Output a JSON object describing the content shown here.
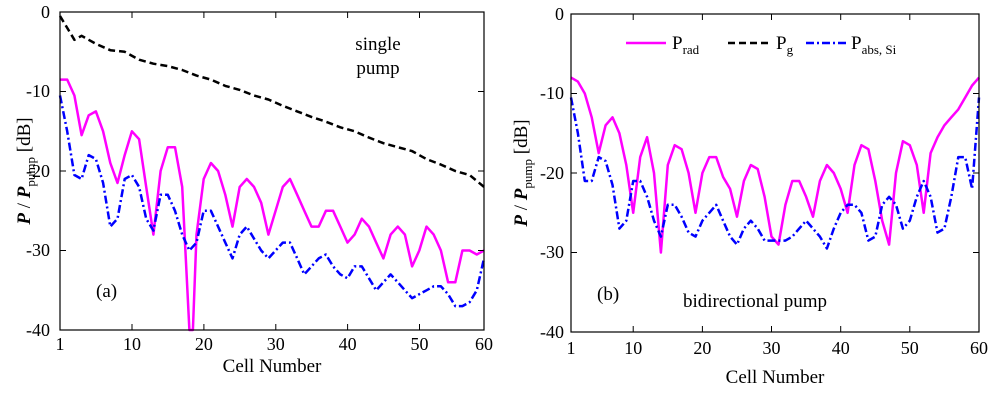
{
  "chart_data": [
    {
      "type": "line",
      "panel_label": "(a)",
      "annotation_lines": [
        "single",
        "pump"
      ],
      "xlabel": "Cell Number",
      "ylabel_parts": [
        "P",
        " / ",
        "P",
        "pump",
        " [dB]"
      ],
      "xlim": [
        1,
        60
      ],
      "ylim": [
        -40,
        0
      ],
      "xticks": [
        "1",
        "10",
        "20",
        "30",
        "40",
        "50",
        "60"
      ],
      "yticks": [
        "0",
        "-10",
        "-20",
        "-30",
        "-40"
      ],
      "grid": false,
      "series": [
        {
          "key": "rad",
          "color": "#ff00ff",
          "style": "solid",
          "x": [
            1,
            2,
            3,
            4,
            5,
            6,
            7,
            8,
            9,
            10,
            11,
            12,
            13,
            14,
            15,
            16,
            17,
            18,
            19,
            19.5,
            20,
            21,
            22,
            23,
            24,
            25,
            26,
            27,
            28,
            29,
            30,
            31,
            32,
            33,
            34,
            35,
            36,
            37,
            38,
            39,
            40,
            41,
            42,
            43,
            44,
            45,
            46,
            47,
            48,
            49,
            50,
            51,
            52,
            53,
            54,
            55,
            56,
            57,
            58,
            59,
            60
          ],
          "y": [
            -8.5,
            -8.5,
            -10.5,
            -15.5,
            -13,
            -12.5,
            -15,
            -19,
            -21.5,
            -18,
            -15,
            -16,
            -22,
            -28,
            -20,
            -17,
            -17,
            -22,
            -40,
            -40,
            -28,
            -21,
            -19,
            -20,
            -23,
            -27,
            -22,
            -21,
            -22,
            -24,
            -28,
            -25,
            -22,
            -21,
            -23,
            -25,
            -27,
            -27,
            -25,
            -25,
            -27,
            -29,
            -28,
            -26,
            -27,
            -29,
            -31,
            -28,
            -27,
            -28,
            -32,
            -30,
            -27,
            -28,
            -30,
            -34,
            -34,
            -30,
            -30,
            -30.5,
            -30
          ]
        },
        {
          "key": "g",
          "color": "#000000",
          "style": "dashed",
          "x": [
            1,
            2,
            3,
            4,
            5,
            6,
            8,
            10,
            12,
            14,
            16,
            18,
            20,
            22,
            24,
            26,
            28,
            30,
            32,
            34,
            36,
            38,
            40,
            42,
            44,
            46,
            48,
            50,
            52,
            54,
            56,
            58,
            60
          ],
          "y": [
            -0.5,
            -2,
            -3.5,
            -3,
            -3.5,
            -4,
            -4.8,
            -5,
            -6,
            -6.5,
            -6.8,
            -7.3,
            -8,
            -8.5,
            -9.3,
            -9.8,
            -10.5,
            -11,
            -11.8,
            -12.5,
            -13.2,
            -13.8,
            -14.5,
            -15,
            -15.8,
            -16.5,
            -17,
            -17.5,
            -18.5,
            -19.2,
            -20,
            -20.5,
            -22
          ]
        },
        {
          "key": "abs",
          "color": "#0000ff",
          "style": "dashdot",
          "x": [
            1,
            2,
            3,
            4,
            5,
            6,
            7,
            8,
            9,
            10,
            11,
            12,
            13,
            14,
            15,
            16,
            17,
            18,
            19,
            20,
            21,
            22,
            23,
            24,
            25,
            26,
            27,
            28,
            29,
            30,
            31,
            32,
            33,
            34,
            35,
            36,
            37,
            38,
            39,
            40,
            41,
            42,
            43,
            44,
            45,
            46,
            47,
            48,
            49,
            50,
            51,
            52,
            53,
            54,
            55,
            56,
            57,
            58,
            59,
            60
          ],
          "y": [
            -10.5,
            -15,
            -20.5,
            -21,
            -18,
            -18.5,
            -21.5,
            -27,
            -26,
            -21,
            -20.5,
            -22,
            -26,
            -27.5,
            -23,
            -23,
            -25,
            -28,
            -30,
            -29,
            -25,
            -25,
            -27,
            -29,
            -31,
            -28,
            -27,
            -28.5,
            -30,
            -31,
            -30,
            -29,
            -29,
            -31,
            -33,
            -32,
            -31,
            -30.5,
            -32,
            -33,
            -33.5,
            -32,
            -32,
            -33.5,
            -35,
            -34,
            -33,
            -34,
            -35,
            -36,
            -35.5,
            -35,
            -34.5,
            -34.5,
            -35.5,
            -37,
            -37,
            -36.5,
            -35,
            -31
          ]
        }
      ]
    },
    {
      "type": "line",
      "panel_label": "(b)",
      "annotation_lines": [
        "bidirectional pump"
      ],
      "xlabel": "Cell Number",
      "ylabel_parts": [
        "P",
        " / ",
        "P",
        "pump",
        " [dB]"
      ],
      "xlim": [
        1,
        60
      ],
      "ylim": [
        -40,
        0
      ],
      "xticks": [
        "1",
        "10",
        "20",
        "30",
        "40",
        "50",
        "60"
      ],
      "yticks": [
        "0",
        "-10",
        "-20",
        "-30",
        "-40"
      ],
      "grid": false,
      "legend": {
        "position": "top",
        "entries": [
          {
            "key": "rad",
            "base": "P",
            "sub": "rad"
          },
          {
            "key": "g",
            "base": "P",
            "sub": "g"
          },
          {
            "key": "abs",
            "base": "P",
            "sub": "abs, Si"
          }
        ]
      },
      "series": [
        {
          "key": "rad",
          "color": "#ff00ff",
          "style": "solid",
          "x": [
            1,
            2,
            3,
            4,
            5,
            6,
            7,
            8,
            9,
            10,
            11,
            12,
            13,
            14,
            15,
            16,
            17,
            18,
            19,
            20,
            21,
            22,
            23,
            24,
            25,
            26,
            27,
            28,
            29,
            30,
            31,
            32,
            33,
            34,
            35,
            36,
            37,
            38,
            39,
            40,
            41,
            42,
            43,
            44,
            45,
            46,
            47,
            48,
            49,
            50,
            51,
            52,
            53,
            54,
            55,
            56,
            57,
            58,
            59,
            60
          ],
          "y": [
            -8,
            -8.5,
            -10,
            -13,
            -17.5,
            -14,
            -13,
            -15,
            -19,
            -25,
            -18,
            -15.5,
            -20,
            -30,
            -19,
            -16.5,
            -17,
            -20,
            -25,
            -20,
            -18,
            -18,
            -20.5,
            -22,
            -25.5,
            -21,
            -19,
            -19.5,
            -23,
            -28,
            -29,
            -24,
            -21,
            -21,
            -23,
            -25.5,
            -21,
            -19,
            -20,
            -22,
            -25,
            -19,
            -16.5,
            -17,
            -21,
            -26,
            -29,
            -20,
            -16,
            -16.5,
            -19,
            -25,
            -17.5,
            -15.5,
            -14,
            -13,
            -12,
            -10.5,
            -9,
            -8
          ]
        },
        {
          "key": "abs",
          "color": "#0000ff",
          "style": "dashdot",
          "x": [
            1,
            2,
            3,
            4,
            5,
            6,
            7,
            8,
            9,
            10,
            11,
            12,
            13,
            14,
            15,
            16,
            17,
            18,
            19,
            20,
            21,
            22,
            23,
            24,
            25,
            26,
            27,
            28,
            29,
            30,
            31,
            32,
            33,
            34,
            35,
            36,
            37,
            38,
            39,
            40,
            41,
            42,
            43,
            44,
            45,
            46,
            47,
            48,
            49,
            50,
            51,
            52,
            53,
            54,
            55,
            56,
            57,
            58,
            59,
            60
          ],
          "y": [
            -10.5,
            -15,
            -21,
            -21,
            -18,
            -18.5,
            -21.5,
            -27,
            -26,
            -21,
            -21,
            -23,
            -26,
            -28,
            -24,
            -24,
            -25.5,
            -27.5,
            -28,
            -26,
            -25,
            -24,
            -26,
            -28,
            -29,
            -27,
            -26,
            -27,
            -28.5,
            -28.5,
            -28.5,
            -28.5,
            -28,
            -27,
            -26,
            -27,
            -28,
            -29.5,
            -27,
            -25,
            -24,
            -24,
            -25,
            -28.5,
            -28,
            -24,
            -23,
            -24,
            -27,
            -26,
            -23,
            -21,
            -23,
            -27.5,
            -27,
            -23,
            -18,
            -18,
            -22,
            -10.5
          ]
        }
      ]
    }
  ]
}
